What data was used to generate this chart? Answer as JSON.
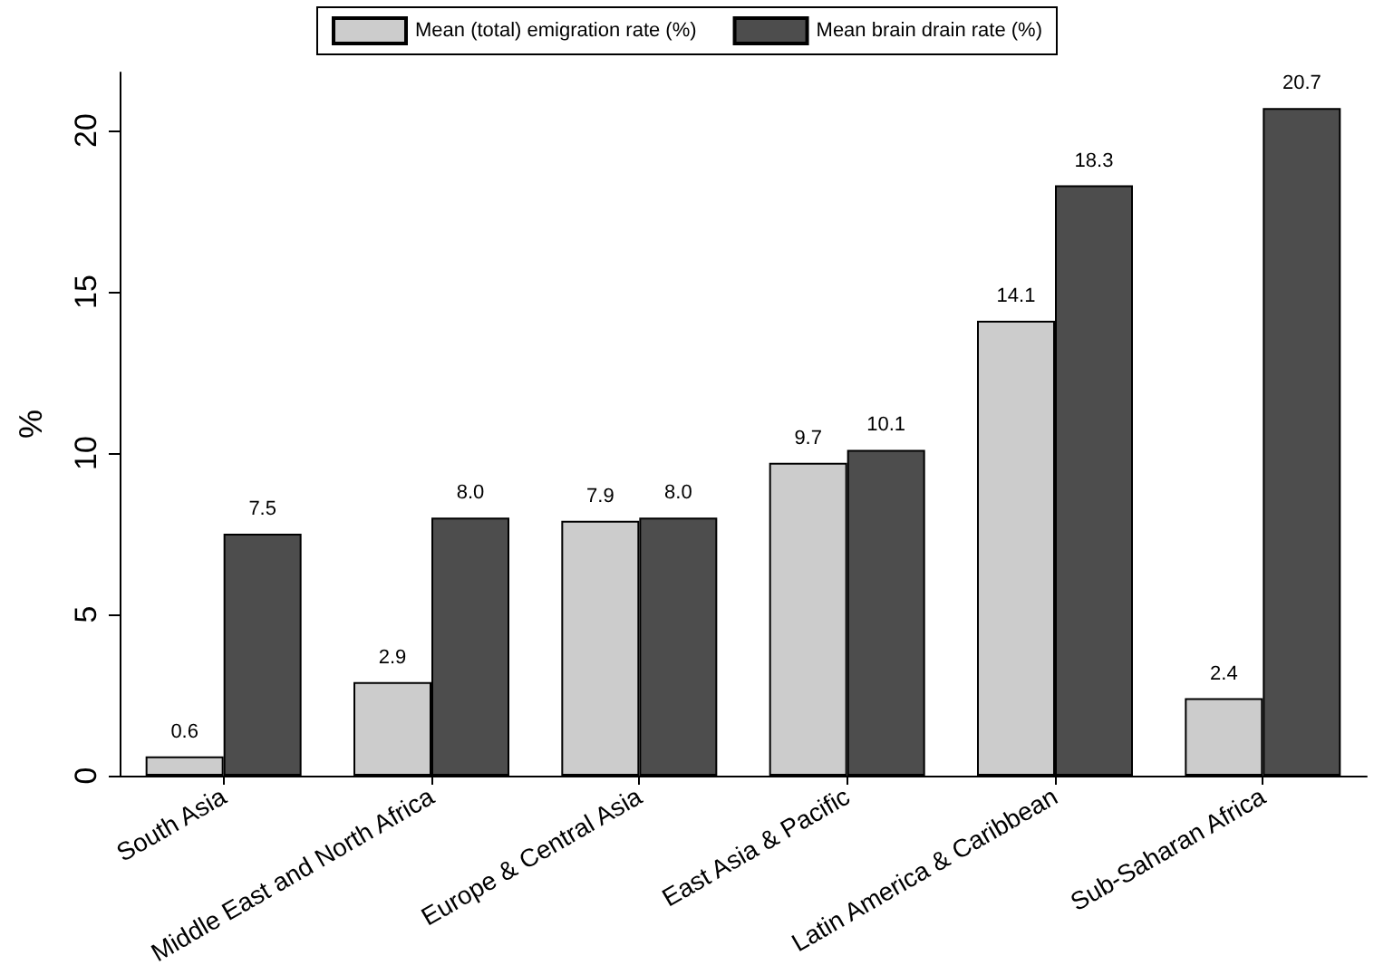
{
  "chart_data": {
    "type": "bar",
    "ylabel": "%",
    "categories": [
      "South Asia",
      "Middle East and North Africa",
      "Europe & Central Asia",
      "East Asia & Pacific",
      "Latin America & Caribbean",
      "Sub-Saharan Africa"
    ],
    "series": [
      {
        "name": "Mean (total) emigration rate (%)",
        "color": "#cccccc",
        "values": [
          0.6,
          2.9,
          7.9,
          9.7,
          14.1,
          2.4
        ],
        "value_labels": [
          "0.6",
          "2.9",
          "7.9",
          "9.7",
          "14.1",
          "2.4"
        ]
      },
      {
        "name": "Mean brain drain rate (%)",
        "color": "#4d4d4d",
        "values": [
          7.5,
          8.0,
          8.0,
          10.1,
          18.3,
          20.7
        ],
        "value_labels": [
          "7.5",
          "8.0",
          "8.0",
          "10.1",
          "18.3",
          "20.7"
        ]
      }
    ],
    "ylim": [
      0,
      21.8
    ],
    "yticks": [
      0,
      5,
      10,
      15,
      20
    ],
    "grid": false,
    "legend": "top"
  }
}
